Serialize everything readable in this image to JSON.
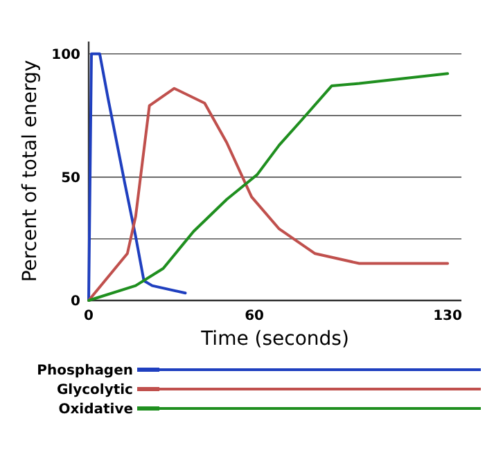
{
  "chart_data": {
    "type": "line",
    "xlabel": "Time (seconds)",
    "ylabel": "Percent of total energy",
    "xlim": [
      0,
      135
    ],
    "xticks": [
      0,
      60,
      130
    ],
    "ylim": [
      0,
      105
    ],
    "yticks": [
      0,
      {
        "value": 25,
        "label": null
      },
      50,
      {
        "value": 75,
        "label": null
      },
      100
    ],
    "grid": "y",
    "legend": "bottom",
    "line_style": "solid",
    "series": [
      {
        "name": "Phosphagen",
        "color": "#1f3fbf",
        "x": [
          0,
          1,
          4,
          7,
          13,
          17,
          20,
          23,
          35
        ],
        "values": [
          0,
          100,
          100,
          82,
          48,
          26,
          8,
          6,
          3
        ]
      },
      {
        "name": "Glycolytic",
        "color": "#c0504d",
        "x": [
          0,
          14,
          17,
          22,
          31,
          42,
          50,
          59,
          69,
          82,
          98,
          130
        ],
        "values": [
          0,
          19,
          34,
          79,
          86,
          80,
          64,
          42,
          29,
          19,
          15,
          15
        ]
      },
      {
        "name": "Oxidative",
        "color": "#1f8f1f",
        "x": [
          0,
          17,
          27,
          38,
          50,
          61,
          69,
          77,
          88,
          98,
          130
        ],
        "values": [
          0,
          6,
          13,
          28,
          41,
          51,
          63,
          73,
          87,
          88,
          92
        ]
      }
    ]
  }
}
